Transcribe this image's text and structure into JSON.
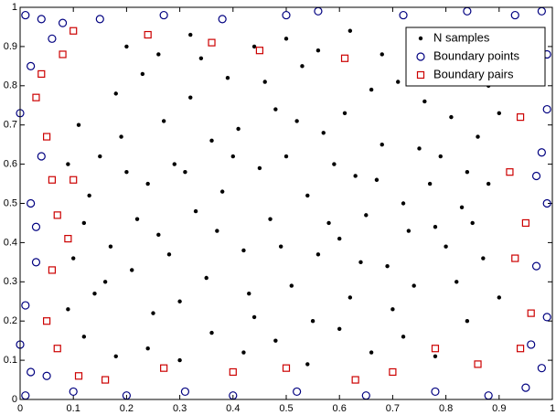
{
  "chart_data": {
    "type": "scatter",
    "xlim": [
      0,
      1
    ],
    "ylim": [
      0,
      1
    ],
    "xticks": [
      0,
      0.1,
      0.2,
      0.3,
      0.4,
      0.5,
      0.6,
      0.7,
      0.8,
      0.9,
      1
    ],
    "yticks": [
      0,
      0.1,
      0.2,
      0.3,
      0.4,
      0.5,
      0.6,
      0.7,
      0.8,
      0.9,
      1
    ],
    "legend": "upper right",
    "series": [
      {
        "name": "N samples",
        "color": "#000000",
        "marker": "dot",
        "x": [
          0.12,
          0.15,
          0.18,
          0.21,
          0.24,
          0.27,
          0.3,
          0.33,
          0.36,
          0.39,
          0.42,
          0.45,
          0.48,
          0.51,
          0.54,
          0.57,
          0.6,
          0.63,
          0.66,
          0.69,
          0.72,
          0.75,
          0.78,
          0.81,
          0.84,
          0.87,
          0.14,
          0.17,
          0.2,
          0.23,
          0.26,
          0.29,
          0.32,
          0.35,
          0.38,
          0.41,
          0.44,
          0.47,
          0.5,
          0.53,
          0.56,
          0.59,
          0.62,
          0.65,
          0.68,
          0.71,
          0.74,
          0.77,
          0.8,
          0.83,
          0.86,
          0.11,
          0.13,
          0.16,
          0.19,
          0.22,
          0.25,
          0.28,
          0.31,
          0.34,
          0.37,
          0.4,
          0.43,
          0.46,
          0.49,
          0.52,
          0.55,
          0.58,
          0.61,
          0.64,
          0.67,
          0.7,
          0.73,
          0.76,
          0.79,
          0.82,
          0.85,
          0.88,
          0.9,
          0.1,
          0.12,
          0.18,
          0.24,
          0.3,
          0.36,
          0.42,
          0.48,
          0.54,
          0.6,
          0.66,
          0.72,
          0.78,
          0.84,
          0.2,
          0.26,
          0.32,
          0.44,
          0.5,
          0.56,
          0.62,
          0.68,
          0.74,
          0.9,
          0.88,
          0.09,
          0.09
        ],
        "y": [
          0.45,
          0.62,
          0.78,
          0.33,
          0.55,
          0.71,
          0.25,
          0.48,
          0.66,
          0.82,
          0.38,
          0.59,
          0.74,
          0.29,
          0.52,
          0.68,
          0.41,
          0.57,
          0.79,
          0.34,
          0.5,
          0.64,
          0.44,
          0.72,
          0.58,
          0.36,
          0.27,
          0.39,
          0.58,
          0.83,
          0.42,
          0.6,
          0.77,
          0.31,
          0.53,
          0.69,
          0.21,
          0.46,
          0.62,
          0.85,
          0.37,
          0.6,
          0.26,
          0.47,
          0.65,
          0.81,
          0.29,
          0.55,
          0.39,
          0.49,
          0.67,
          0.7,
          0.52,
          0.3,
          0.67,
          0.46,
          0.22,
          0.37,
          0.58,
          0.87,
          0.43,
          0.62,
          0.27,
          0.81,
          0.39,
          0.71,
          0.2,
          0.45,
          0.73,
          0.35,
          0.56,
          0.23,
          0.43,
          0.76,
          0.62,
          0.3,
          0.45,
          0.55,
          0.73,
          0.36,
          0.16,
          0.11,
          0.13,
          0.1,
          0.17,
          0.12,
          0.15,
          0.09,
          0.18,
          0.12,
          0.16,
          0.11,
          0.2,
          0.9,
          0.88,
          0.93,
          0.9,
          0.92,
          0.89,
          0.94,
          0.88,
          0.9,
          0.26,
          0.8,
          0.23,
          0.6
        ]
      },
      {
        "name": "Boundary points",
        "color": "#000080",
        "marker": "circle",
        "x": [
          0.01,
          0.04,
          0.08,
          0.15,
          0.27,
          0.38,
          0.5,
          0.56,
          0.72,
          0.84,
          0.93,
          0.98,
          0.99,
          0.99,
          0.98,
          0.99,
          0.97,
          0.99,
          0.98,
          0.95,
          0.88,
          0.78,
          0.65,
          0.52,
          0.4,
          0.31,
          0.2,
          0.1,
          0.01,
          0.02,
          0.0,
          0.01,
          0.03,
          0.02,
          0.04,
          0.0,
          0.02,
          0.05,
          0.96,
          0.06,
          0.92,
          0.03,
          0.97
        ],
        "y": [
          0.98,
          0.97,
          0.96,
          0.97,
          0.98,
          0.97,
          0.98,
          0.99,
          0.98,
          0.99,
          0.98,
          0.99,
          0.88,
          0.74,
          0.63,
          0.5,
          0.34,
          0.21,
          0.08,
          0.03,
          0.01,
          0.02,
          0.01,
          0.02,
          0.01,
          0.02,
          0.01,
          0.02,
          0.01,
          0.07,
          0.14,
          0.24,
          0.35,
          0.5,
          0.62,
          0.73,
          0.85,
          0.06,
          0.14,
          0.92,
          0.93,
          0.44,
          0.57
        ]
      },
      {
        "name": "Boundary pairs",
        "color": "#cc0000",
        "marker": "square",
        "x": [
          0.03,
          0.05,
          0.06,
          0.07,
          0.09,
          0.06,
          0.05,
          0.07,
          0.11,
          0.16,
          0.27,
          0.4,
          0.5,
          0.63,
          0.7,
          0.78,
          0.86,
          0.94,
          0.96,
          0.93,
          0.95,
          0.92,
          0.94,
          0.95,
          0.85,
          0.74,
          0.61,
          0.45,
          0.36,
          0.24,
          0.1,
          0.08,
          0.04,
          0.1
        ],
        "y": [
          0.77,
          0.67,
          0.56,
          0.47,
          0.41,
          0.33,
          0.2,
          0.13,
          0.06,
          0.05,
          0.08,
          0.07,
          0.08,
          0.05,
          0.07,
          0.13,
          0.09,
          0.13,
          0.22,
          0.36,
          0.45,
          0.58,
          0.72,
          0.82,
          0.88,
          0.92,
          0.87,
          0.89,
          0.91,
          0.93,
          0.94,
          0.88,
          0.83,
          0.56
        ]
      }
    ]
  }
}
